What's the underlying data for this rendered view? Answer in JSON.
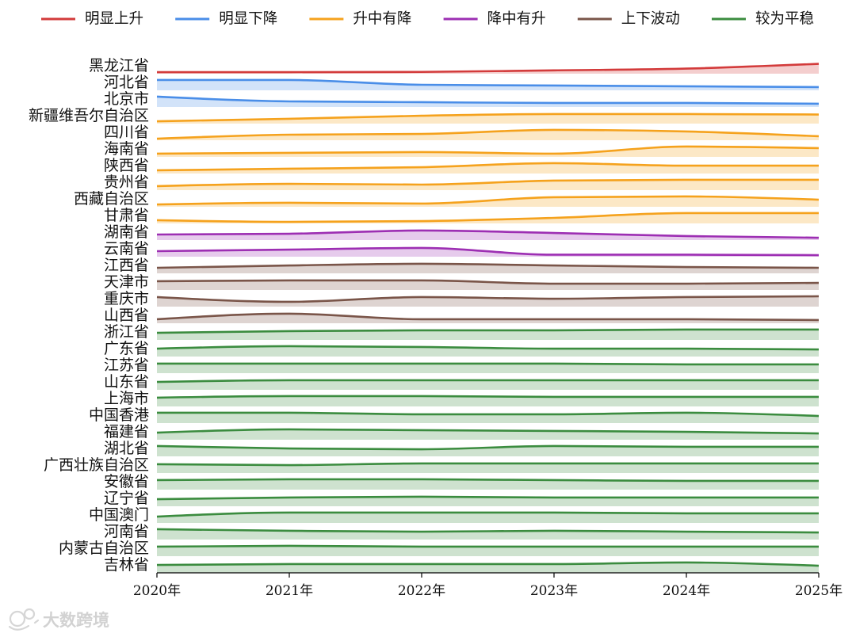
{
  "watermark": "大数跨境",
  "chart_data": {
    "type": "area",
    "x": [
      "2020年",
      "2021年",
      "2022年",
      "2023年",
      "2024年",
      "2025年"
    ],
    "legend_position": "top",
    "grid": false,
    "groups": [
      {
        "name": "明显上升",
        "color": "#d33b3b"
      },
      {
        "name": "明显下降",
        "color": "#4a8ee8"
      },
      {
        "name": "升中有降",
        "color": "#f5a21d"
      },
      {
        "name": "降中有升",
        "color": "#9d2fb3"
      },
      {
        "name": "上下波动",
        "color": "#7a5549"
      },
      {
        "name": "较为平稳",
        "color": "#3b8c3f"
      }
    ],
    "series": [
      {
        "name": "黑龙江省",
        "group": "明显上升",
        "values": [
          0.14,
          0.14,
          0.16,
          0.3,
          0.46,
          0.89
        ]
      },
      {
        "name": "河北省",
        "group": "明显下降",
        "values": [
          0.93,
          0.93,
          0.5,
          0.43,
          0.36,
          0.29
        ]
      },
      {
        "name": "北京市",
        "group": "明显下降",
        "values": [
          0.93,
          0.5,
          0.43,
          0.36,
          0.36,
          0.29
        ]
      },
      {
        "name": "新疆维吾尔自治区",
        "group": "升中有降",
        "values": [
          0.21,
          0.43,
          0.71,
          0.86,
          0.86,
          0.82
        ]
      },
      {
        "name": "四川省",
        "group": "升中有降",
        "values": [
          0.14,
          0.5,
          0.57,
          0.93,
          0.79,
          0.36
        ]
      },
      {
        "name": "海南省",
        "group": "升中有降",
        "values": [
          0.29,
          0.36,
          0.43,
          0.29,
          0.93,
          0.79
        ]
      },
      {
        "name": "陕西省",
        "group": "升中有降",
        "values": [
          0.29,
          0.43,
          0.57,
          0.93,
          0.71,
          0.71
        ]
      },
      {
        "name": "贵州省",
        "group": "升中有降",
        "values": [
          0.36,
          0.57,
          0.5,
          0.86,
          0.93,
          0.93
        ]
      },
      {
        "name": "西藏自治区",
        "group": "升中有降",
        "values": [
          0.21,
          0.36,
          0.29,
          0.86,
          0.93,
          0.64
        ]
      },
      {
        "name": "甘肃省",
        "group": "升中有降",
        "values": [
          0.29,
          0.14,
          0.21,
          0.5,
          0.93,
          0.93
        ]
      },
      {
        "name": "湖南省",
        "group": "降中有升",
        "values": [
          0.5,
          0.57,
          0.86,
          0.64,
          0.36,
          0.21
        ]
      },
      {
        "name": "云南省",
        "group": "降中有升",
        "values": [
          0.5,
          0.64,
          0.79,
          0.18,
          0.18,
          0.14
        ]
      },
      {
        "name": "江西省",
        "group": "上下波动",
        "values": [
          0.5,
          0.71,
          0.86,
          0.71,
          0.57,
          0.5
        ]
      },
      {
        "name": "天津市",
        "group": "上下波动",
        "values": [
          0.79,
          0.86,
          0.86,
          0.57,
          0.57,
          0.64
        ]
      },
      {
        "name": "重庆市",
        "group": "上下波动",
        "values": [
          0.86,
          0.43,
          0.86,
          0.71,
          0.86,
          0.93
        ]
      },
      {
        "name": "山西省",
        "group": "上下波动",
        "values": [
          0.36,
          0.86,
          0.36,
          0.36,
          0.36,
          0.29
        ]
      },
      {
        "name": "浙江省",
        "group": "较为平稳",
        "values": [
          0.64,
          0.79,
          0.86,
          0.86,
          0.93,
          0.93
        ]
      },
      {
        "name": "广东省",
        "group": "较为平稳",
        "values": [
          0.71,
          0.93,
          0.86,
          0.71,
          0.71,
          0.64
        ]
      },
      {
        "name": "江苏省",
        "group": "较为平稳",
        "values": [
          0.86,
          0.86,
          0.86,
          0.86,
          0.79,
          0.79
        ]
      },
      {
        "name": "山东省",
        "group": "较为平稳",
        "values": [
          0.71,
          0.86,
          0.86,
          0.86,
          0.86,
          0.86
        ]
      },
      {
        "name": "上海市",
        "group": "较为平稳",
        "values": [
          0.79,
          0.93,
          0.93,
          0.86,
          0.86,
          0.86
        ]
      },
      {
        "name": "中国香港",
        "group": "较为平稳",
        "values": [
          0.93,
          0.93,
          0.79,
          0.79,
          0.93,
          0.64
        ]
      },
      {
        "name": "福建省",
        "group": "较为平稳",
        "values": [
          0.64,
          0.93,
          0.86,
          0.79,
          0.71,
          0.57
        ]
      },
      {
        "name": "湖北省",
        "group": "较为平稳",
        "values": [
          0.93,
          0.71,
          0.64,
          0.93,
          0.86,
          0.86
        ]
      },
      {
        "name": "广西壮族自治区",
        "group": "较为平稳",
        "values": [
          0.79,
          0.71,
          0.86,
          0.86,
          0.86,
          0.86
        ]
      },
      {
        "name": "安徽省",
        "group": "较为平稳",
        "values": [
          0.86,
          0.93,
          0.93,
          0.86,
          0.79,
          0.79
        ]
      },
      {
        "name": "辽宁省",
        "group": "较为平稳",
        "values": [
          0.64,
          0.79,
          0.86,
          0.79,
          0.79,
          0.79
        ]
      },
      {
        "name": "中国澳门",
        "group": "较为平稳",
        "values": [
          0.57,
          0.93,
          0.93,
          0.93,
          0.86,
          0.86
        ]
      },
      {
        "name": "河南省",
        "group": "较为平稳",
        "values": [
          0.93,
          0.79,
          0.71,
          0.79,
          0.71,
          0.64
        ]
      },
      {
        "name": "内蒙古自治区",
        "group": "较为平稳",
        "values": [
          0.86,
          0.93,
          0.86,
          0.86,
          0.86,
          0.86
        ]
      },
      {
        "name": "吉林省",
        "group": "较为平稳",
        "values": [
          0.71,
          0.79,
          0.79,
          0.79,
          0.93,
          0.64
        ]
      }
    ]
  }
}
